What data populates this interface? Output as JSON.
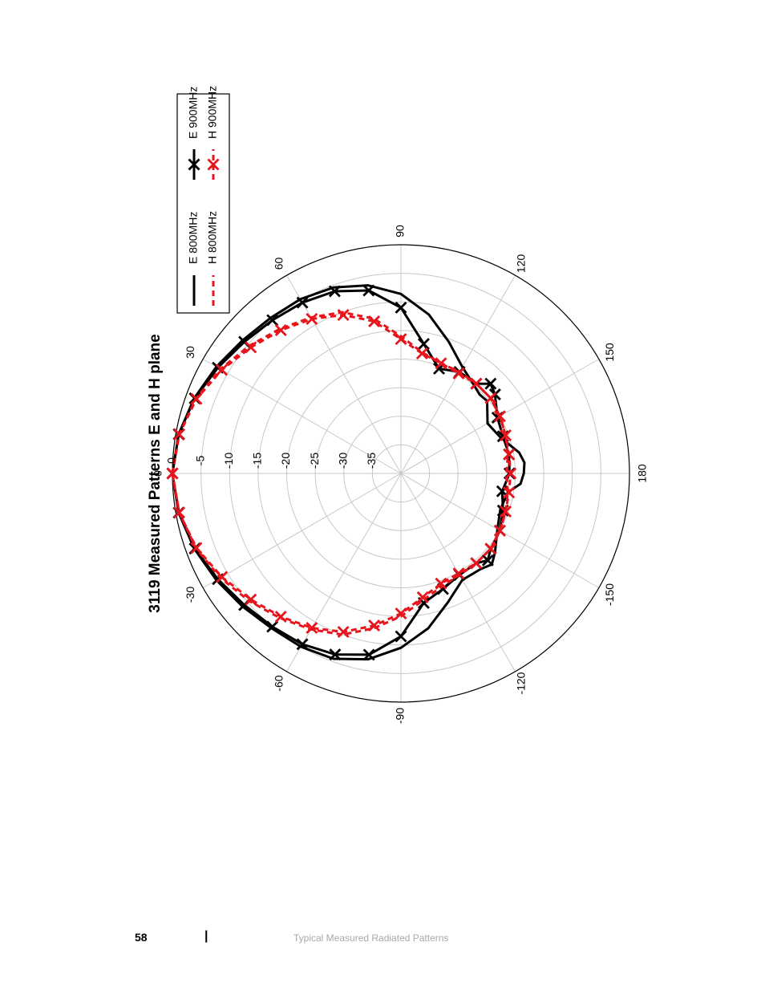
{
  "page": {
    "number": "58",
    "separator": "|",
    "section": "Typical Measured Radiated Patterns"
  },
  "colors": {
    "black": "#000000",
    "red": "#e8141c",
    "grid": "#c8c8c8"
  },
  "chart_data": {
    "type": "polar",
    "title": "3119 Measured Patterns E and H plane",
    "angle_ticks": [
      0,
      30,
      60,
      90,
      120,
      150,
      180,
      -150,
      -120,
      -90,
      -60,
      -30
    ],
    "radial_ticks": [
      0,
      -5,
      -10,
      -15,
      -20,
      -25,
      -30,
      -35
    ],
    "rlim": [
      -40,
      0
    ],
    "grid": true,
    "legend_position": "top-right",
    "legend": [
      "E 800MHz",
      "E 900MHz",
      "H 800MHz",
      "H 900MHz"
    ],
    "series": [
      {
        "name": "E 800MHz",
        "style": "solid",
        "color": "#000000",
        "markers": false,
        "angles": [
          0,
          10,
          20,
          30,
          40,
          50,
          60,
          70,
          80,
          90,
          100,
          110,
          120,
          130,
          135,
          140,
          150,
          160,
          170,
          175,
          180,
          185,
          190,
          200,
          210,
          220,
          225,
          230,
          240,
          250,
          260,
          270,
          280,
          290,
          300,
          310,
          320,
          330,
          340,
          350
        ],
        "values": [
          0,
          -0.5,
          -1.5,
          -2.7,
          -3.8,
          -4.5,
          -4.8,
          -5.4,
          -6.6,
          -8.6,
          -11.8,
          -15.5,
          -18.5,
          -20,
          -20.5,
          -20.3,
          -22.5,
          -21.5,
          -19,
          -18.3,
          -18.5,
          -19,
          -21,
          -21.5,
          -20.5,
          -18.5,
          -17.5,
          -18.2,
          -18.5,
          -16,
          -12.5,
          -9.5,
          -7,
          -5.5,
          -5,
          -4.7,
          -3.8,
          -2.7,
          -1.5,
          -0.5
        ]
      },
      {
        "name": "E 900MHz",
        "style": "solid",
        "color": "#000000",
        "markers": true,
        "angles": [
          0,
          10,
          20,
          30,
          40,
          50,
          60,
          70,
          80,
          90,
          100,
          110,
          120,
          130,
          135,
          140,
          150,
          160,
          170,
          180,
          190,
          200,
          210,
          220,
          225,
          230,
          240,
          250,
          260,
          270,
          280,
          290,
          300,
          310,
          320,
          330,
          340,
          350
        ],
        "values": [
          0,
          -0.5,
          -1.6,
          -3,
          -4.2,
          -5,
          -5.5,
          -6.1,
          -7.5,
          -11,
          -17,
          -20.5,
          -19.5,
          -19.5,
          -17.8,
          -18.5,
          -20.5,
          -21,
          -20.8,
          -21,
          -22,
          -21,
          -20,
          -19.5,
          -18.5,
          -19.5,
          -19.5,
          -18.5,
          -17,
          -11.5,
          -7.8,
          -6.3,
          -5.5,
          -5,
          -4.2,
          -3,
          -1.6,
          -0.5
        ]
      },
      {
        "name": "H 800MHz",
        "style": "dashed",
        "color": "#e8141c",
        "markers": false,
        "angles": [
          0,
          10,
          20,
          30,
          40,
          50,
          60,
          70,
          80,
          90,
          100,
          110,
          120,
          130,
          140,
          150,
          160,
          170,
          180,
          190,
          200,
          210,
          220,
          230,
          240,
          250,
          260,
          270,
          280,
          290,
          300,
          310,
          320,
          330,
          340,
          350
        ],
        "values": [
          0,
          -0.6,
          -1.8,
          -3.5,
          -5.3,
          -7,
          -8.5,
          -10,
          -12.5,
          -16,
          -18.5,
          -19.5,
          -19.5,
          -19.5,
          -19.5,
          -20,
          -20.5,
          -21,
          -21.5,
          -21,
          -20.5,
          -20,
          -19.5,
          -19.5,
          -19.5,
          -19,
          -17.5,
          -15,
          -12.5,
          -10,
          -8.5,
          -7,
          -5.3,
          -3.5,
          -1.8,
          -0.6
        ]
      },
      {
        "name": "H 900MHz",
        "style": "dashed",
        "color": "#e8141c",
        "markers": true,
        "angles": [
          0,
          10,
          20,
          30,
          40,
          50,
          60,
          70,
          80,
          90,
          100,
          110,
          120,
          130,
          140,
          150,
          160,
          170,
          180,
          190,
          200,
          210,
          220,
          230,
          240,
          250,
          260,
          270,
          280,
          290,
          300,
          310,
          320,
          330,
          340,
          350
        ],
        "values": [
          0,
          -0.6,
          -1.9,
          -3.8,
          -5.7,
          -7.3,
          -8.8,
          -10.5,
          -13,
          -16.5,
          -18.7,
          -19.5,
          -19.8,
          -19.5,
          -19.5,
          -20,
          -20.5,
          -20.8,
          -20.8,
          -20.8,
          -20.5,
          -20,
          -19.5,
          -19.5,
          -19.8,
          -19.5,
          -18,
          -15.5,
          -13,
          -10.5,
          -8.8,
          -7.3,
          -5.7,
          -3.8,
          -1.9,
          -0.6
        ]
      }
    ]
  }
}
